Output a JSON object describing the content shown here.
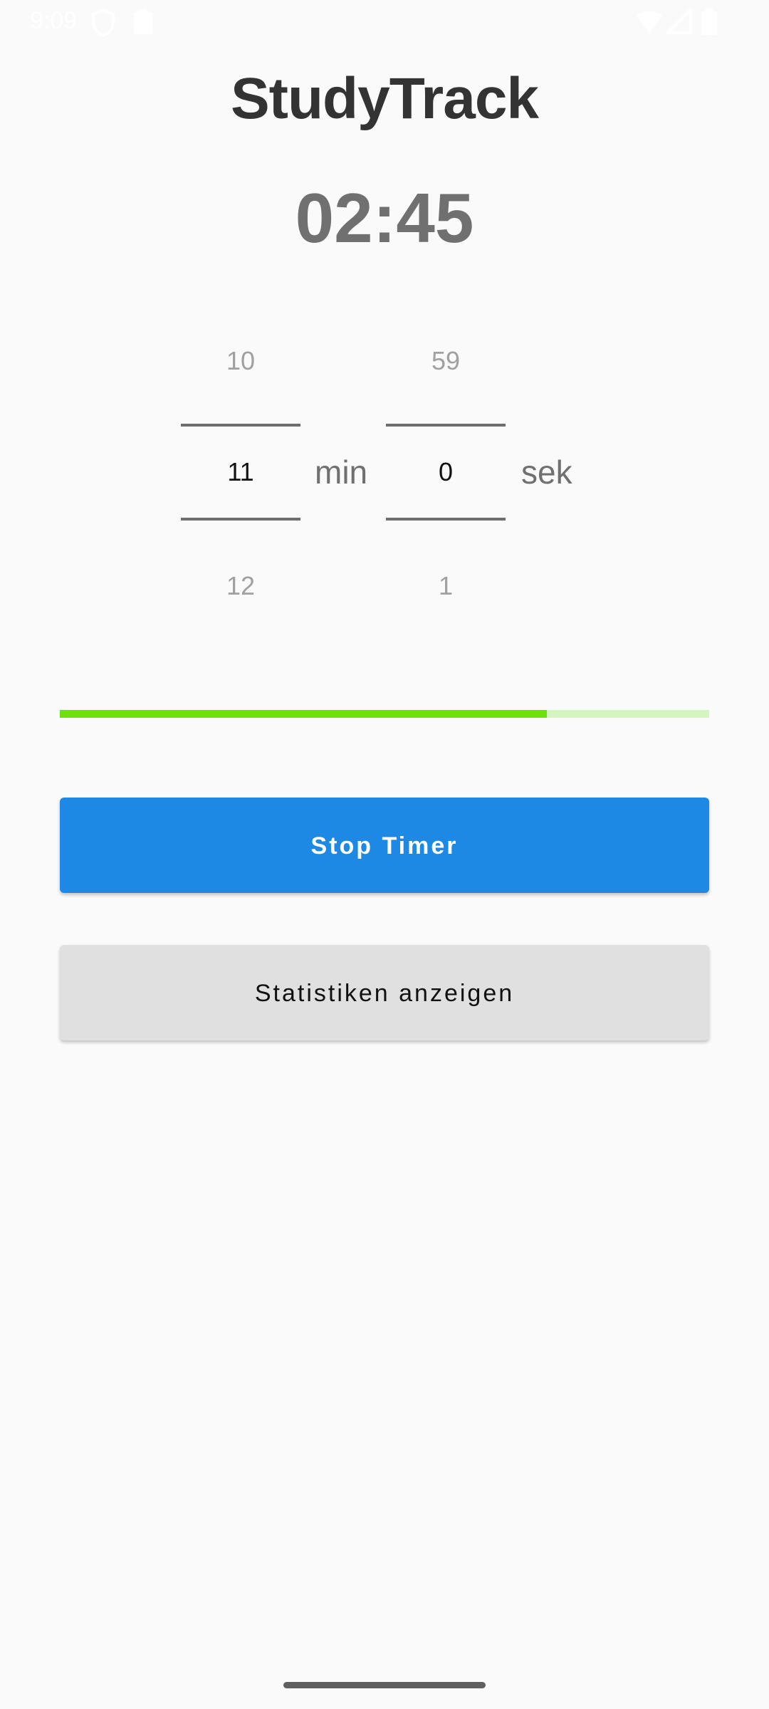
{
  "status_bar": {
    "time": "9:09",
    "icons": [
      "shield-icon",
      "clipboard-icon",
      "wifi-icon",
      "signal-icon",
      "battery-icon"
    ]
  },
  "app": {
    "title": "StudyTrack",
    "timer": "02:45"
  },
  "picker": {
    "minutes": {
      "prev": "10",
      "current": "11",
      "next": "12",
      "unit": "min"
    },
    "seconds": {
      "prev": "59",
      "current": "0",
      "next": "1",
      "unit": "sek"
    }
  },
  "progress": {
    "value_percent": 75,
    "fill_color": "#6de20a",
    "track_color": "#d4f5c0"
  },
  "buttons": {
    "stop_label": "Stop Timer",
    "stats_label": "Statistiken anzeigen"
  },
  "colors": {
    "primary": "#1e88e5",
    "background": "#fafafa"
  }
}
